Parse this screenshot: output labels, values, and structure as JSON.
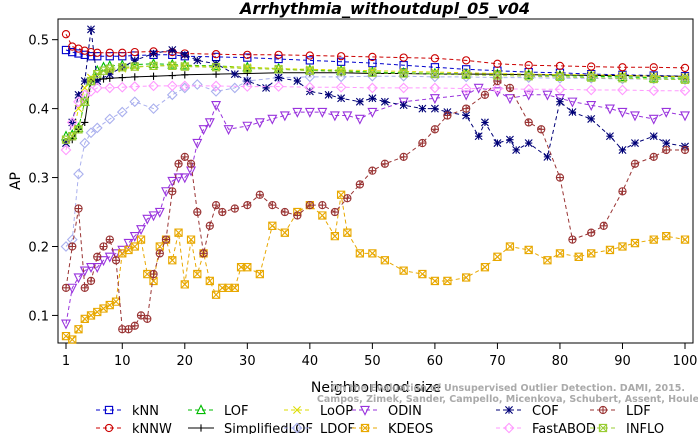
{
  "chart_data": {
    "type": "line",
    "title": "Arrhythmia_withoutdupl_05_v04",
    "xlabel": "Neighborhood size",
    "ylabel": "AP",
    "xlim": [
      1,
      100
    ],
    "ylim": [
      0.06,
      0.53
    ],
    "xticks": [
      1,
      10,
      20,
      30,
      40,
      50,
      60,
      70,
      80,
      90,
      100
    ],
    "yticks": [
      0.1,
      0.2,
      0.3,
      0.4,
      0.5
    ],
    "grid": false,
    "legend_position": "bottom",
    "watermark": [
      "Campos, Zimek, Sander, Campello, Micenkova, Schubert, Assent, Houle",
      "On the Evaluation of Unsupervised Outlier Detection. DAMI, 2015."
    ],
    "series": [
      {
        "name": "kNN",
        "color": "#0000cc",
        "marker": "square",
        "dash": "4,3",
        "x": [
          1,
          2,
          3,
          4,
          5,
          6,
          8,
          10,
          12,
          15,
          18,
          20,
          25,
          30,
          35,
          40,
          45,
          50,
          55,
          60,
          65,
          70,
          75,
          80,
          85,
          90,
          95,
          100
        ],
        "y": [
          0.485,
          0.482,
          0.48,
          0.478,
          0.476,
          0.476,
          0.476,
          0.476,
          0.477,
          0.478,
          0.478,
          0.476,
          0.475,
          0.474,
          0.472,
          0.47,
          0.468,
          0.466,
          0.463,
          0.46,
          0.457,
          0.455,
          0.453,
          0.452,
          0.45,
          0.449,
          0.448,
          0.447
        ]
      },
      {
        "name": "kNNW",
        "color": "#cc0000",
        "marker": "circle",
        "dash": "4,3",
        "x": [
          1,
          2,
          3,
          4,
          5,
          6,
          8,
          10,
          12,
          15,
          18,
          20,
          25,
          30,
          35,
          40,
          45,
          50,
          55,
          60,
          65,
          70,
          75,
          80,
          85,
          90,
          95,
          100
        ],
        "y": [
          0.508,
          0.49,
          0.487,
          0.484,
          0.482,
          0.481,
          0.481,
          0.481,
          0.482,
          0.483,
          0.482,
          0.48,
          0.479,
          0.478,
          0.478,
          0.477,
          0.476,
          0.475,
          0.474,
          0.473,
          0.47,
          0.465,
          0.463,
          0.462,
          0.461,
          0.46,
          0.46,
          0.459
        ]
      },
      {
        "name": "LOF",
        "color": "#00bb00",
        "marker": "triangle",
        "dash": "4,3",
        "x": [
          1,
          2,
          3,
          4,
          5,
          6,
          7,
          8,
          10,
          12,
          15,
          18,
          20,
          25,
          30,
          35,
          40,
          45,
          50,
          55,
          60,
          65,
          70,
          75,
          80,
          85,
          90,
          95,
          100
        ],
        "y": [
          0.36,
          0.362,
          0.372,
          0.41,
          0.44,
          0.455,
          0.46,
          0.462,
          0.463,
          0.464,
          0.465,
          0.464,
          0.463,
          0.462,
          0.46,
          0.458,
          0.456,
          0.455,
          0.453,
          0.452,
          0.451,
          0.45,
          0.45,
          0.449,
          0.448,
          0.447,
          0.446,
          0.445,
          0.444
        ]
      },
      {
        "name": "SimplifiedLOF",
        "color": "#000000",
        "marker": "plus",
        "dash": "none",
        "x": [
          1,
          2,
          3,
          4,
          5,
          6,
          7,
          8,
          10,
          12,
          15,
          18,
          20,
          25,
          30,
          35,
          40,
          45,
          50,
          55,
          60,
          65,
          70,
          75,
          80,
          85,
          90,
          95,
          100
        ],
        "y": [
          0.352,
          0.355,
          0.37,
          0.38,
          0.44,
          0.442,
          0.443,
          0.444,
          0.445,
          0.446,
          0.447,
          0.448,
          0.449,
          0.45,
          0.451,
          0.452,
          0.452,
          0.452,
          0.451,
          0.451,
          0.45,
          0.45,
          0.45,
          0.449,
          0.449,
          0.448,
          0.448,
          0.447,
          0.447
        ]
      },
      {
        "name": "LoOP",
        "color": "#dddd00",
        "marker": "x",
        "dash": "4,3",
        "x": [
          1,
          2,
          3,
          4,
          5,
          6,
          8,
          10,
          12,
          15,
          18,
          20,
          25,
          30,
          35,
          40,
          45,
          50,
          55,
          60,
          65,
          70,
          75,
          80,
          85,
          90,
          95,
          100
        ],
        "y": [
          0.355,
          0.36,
          0.4,
          0.43,
          0.445,
          0.45,
          0.455,
          0.458,
          0.46,
          0.462,
          0.463,
          0.462,
          0.461,
          0.46,
          0.458,
          0.457,
          0.456,
          0.455,
          0.454,
          0.453,
          0.452,
          0.451,
          0.45,
          0.449,
          0.449,
          0.448,
          0.447,
          0.446
        ]
      },
      {
        "name": "LDOF",
        "color": "#aab0ee",
        "marker": "diamond",
        "dash": "4,3",
        "x": [
          1,
          2,
          3,
          4,
          5,
          6,
          8,
          10,
          12,
          15,
          18,
          20,
          22,
          25,
          28,
          30,
          35,
          40,
          45,
          50,
          55,
          60,
          65,
          70,
          75,
          80,
          85,
          90,
          95,
          100
        ],
        "y": [
          0.2,
          0.21,
          0.305,
          0.35,
          0.365,
          0.372,
          0.385,
          0.395,
          0.41,
          0.4,
          0.42,
          0.43,
          0.435,
          0.425,
          0.43,
          0.44,
          0.445,
          0.446,
          0.446,
          0.447,
          0.447,
          0.446,
          0.446,
          0.445,
          0.445,
          0.444,
          0.444,
          0.443,
          0.443,
          0.442
        ]
      },
      {
        "name": "ODIN",
        "color": "#9933dd",
        "marker": "triangle-down",
        "dash": "4,3",
        "x": [
          1,
          2,
          3,
          4,
          5,
          6,
          7,
          8,
          9,
          10,
          11,
          12,
          13,
          14,
          15,
          16,
          17,
          18,
          19,
          20,
          21,
          22,
          23,
          24,
          25,
          27,
          30,
          32,
          34,
          36,
          38,
          40,
          42,
          44,
          46,
          48,
          50,
          55,
          60,
          65,
          67,
          70,
          72,
          75,
          78,
          80,
          82,
          85,
          88,
          90,
          92,
          95,
          97,
          100
        ],
        "y": [
          0.088,
          0.14,
          0.155,
          0.165,
          0.17,
          0.17,
          0.18,
          0.185,
          0.19,
          0.195,
          0.205,
          0.215,
          0.225,
          0.24,
          0.245,
          0.25,
          0.28,
          0.295,
          0.3,
          0.3,
          0.31,
          0.35,
          0.37,
          0.38,
          0.405,
          0.37,
          0.375,
          0.38,
          0.385,
          0.39,
          0.395,
          0.395,
          0.395,
          0.39,
          0.39,
          0.385,
          0.395,
          0.41,
          0.415,
          0.42,
          0.43,
          0.425,
          0.415,
          0.42,
          0.42,
          0.415,
          0.41,
          0.405,
          0.4,
          0.395,
          0.39,
          0.385,
          0.395,
          0.39
        ]
      },
      {
        "name": "KDEOS",
        "color": "#e8a800",
        "marker": "square-x",
        "dash": "4,3",
        "x": [
          1,
          2,
          3,
          4,
          5,
          6,
          7,
          8,
          9,
          10,
          11,
          12,
          13,
          14,
          15,
          16,
          17,
          18,
          19,
          20,
          21,
          22,
          23,
          24,
          25,
          26,
          27,
          28,
          29,
          30,
          32,
          34,
          36,
          38,
          40,
          42,
          44,
          45,
          46,
          48,
          50,
          52,
          55,
          58,
          60,
          62,
          65,
          68,
          70,
          72,
          75,
          78,
          80,
          83,
          85,
          88,
          90,
          92,
          95,
          97,
          100
        ],
        "y": [
          0.07,
          0.065,
          0.08,
          0.095,
          0.1,
          0.105,
          0.11,
          0.115,
          0.12,
          0.19,
          0.195,
          0.2,
          0.21,
          0.16,
          0.15,
          0.2,
          0.21,
          0.18,
          0.22,
          0.145,
          0.21,
          0.16,
          0.19,
          0.15,
          0.13,
          0.14,
          0.14,
          0.14,
          0.17,
          0.17,
          0.16,
          0.23,
          0.22,
          0.25,
          0.26,
          0.245,
          0.215,
          0.275,
          0.22,
          0.19,
          0.19,
          0.18,
          0.165,
          0.16,
          0.15,
          0.15,
          0.155,
          0.17,
          0.185,
          0.2,
          0.195,
          0.18,
          0.19,
          0.185,
          0.19,
          0.195,
          0.2,
          0.205,
          0.21,
          0.215,
          0.21
        ]
      },
      {
        "name": "COF",
        "color": "#000077",
        "marker": "asterisk",
        "dash": "4,3",
        "x": [
          1,
          2,
          3,
          4,
          5,
          6,
          8,
          10,
          12,
          15,
          18,
          20,
          22,
          25,
          28,
          30,
          33,
          35,
          38,
          40,
          43,
          45,
          48,
          50,
          52,
          55,
          58,
          60,
          62,
          65,
          67,
          68,
          70,
          72,
          73,
          75,
          78,
          80,
          82,
          85,
          88,
          90,
          92,
          95,
          97,
          100
        ],
        "y": [
          0.35,
          0.38,
          0.42,
          0.44,
          0.515,
          0.44,
          0.45,
          0.46,
          0.47,
          0.48,
          0.485,
          0.478,
          0.47,
          0.465,
          0.45,
          0.44,
          0.43,
          0.445,
          0.44,
          0.425,
          0.42,
          0.415,
          0.41,
          0.415,
          0.41,
          0.405,
          0.4,
          0.4,
          0.395,
          0.39,
          0.36,
          0.38,
          0.35,
          0.355,
          0.34,
          0.35,
          0.33,
          0.41,
          0.395,
          0.385,
          0.36,
          0.34,
          0.35,
          0.36,
          0.35,
          0.345
        ]
      },
      {
        "name": "FastABOD",
        "color": "#ff99ff",
        "marker": "diamond",
        "dash": "4,3",
        "x": [
          1,
          2,
          3,
          4,
          5,
          6,
          8,
          10,
          12,
          15,
          18,
          20,
          25,
          30,
          35,
          40,
          45,
          50,
          55,
          60,
          65,
          70,
          75,
          80,
          85,
          90,
          95,
          100
        ],
        "y": [
          0.34,
          0.38,
          0.41,
          0.42,
          0.425,
          0.43,
          0.43,
          0.431,
          0.432,
          0.433,
          0.433,
          0.433,
          0.433,
          0.432,
          0.432,
          0.431,
          0.431,
          0.43,
          0.43,
          0.43,
          0.429,
          0.429,
          0.428,
          0.428,
          0.427,
          0.427,
          0.426,
          0.426
        ]
      },
      {
        "name": "LDF",
        "color": "#993333",
        "marker": "circle-plus",
        "dash": "4,3",
        "x": [
          1,
          2,
          3,
          4,
          5,
          6,
          7,
          8,
          9,
          10,
          11,
          12,
          13,
          14,
          15,
          16,
          17,
          18,
          19,
          20,
          21,
          22,
          23,
          24,
          25,
          26,
          28,
          30,
          32,
          34,
          36,
          38,
          40,
          42,
          44,
          46,
          48,
          50,
          52,
          55,
          58,
          60,
          62,
          65,
          68,
          70,
          72,
          75,
          77,
          80,
          82,
          85,
          87,
          90,
          92,
          95,
          97,
          100
        ],
        "y": [
          0.14,
          0.2,
          0.255,
          0.14,
          0.15,
          0.185,
          0.2,
          0.21,
          0.18,
          0.08,
          0.08,
          0.085,
          0.1,
          0.095,
          0.16,
          0.19,
          0.21,
          0.28,
          0.32,
          0.33,
          0.32,
          0.25,
          0.19,
          0.23,
          0.26,
          0.25,
          0.255,
          0.26,
          0.275,
          0.26,
          0.25,
          0.245,
          0.26,
          0.26,
          0.25,
          0.27,
          0.29,
          0.31,
          0.32,
          0.33,
          0.35,
          0.37,
          0.39,
          0.4,
          0.42,
          0.44,
          0.43,
          0.38,
          0.37,
          0.3,
          0.21,
          0.22,
          0.23,
          0.28,
          0.32,
          0.33,
          0.34,
          0.34
        ]
      },
      {
        "name": "INFLO",
        "color": "#99cc33",
        "marker": "square-x",
        "dash": "4,3",
        "x": [
          1,
          2,
          3,
          4,
          5,
          6,
          7,
          8,
          10,
          12,
          15,
          18,
          20,
          25,
          30,
          35,
          40,
          45,
          50,
          55,
          60,
          65,
          70,
          75,
          80,
          85,
          90,
          95,
          100
        ],
        "y": [
          0.355,
          0.36,
          0.37,
          0.41,
          0.44,
          0.45,
          0.455,
          0.458,
          0.46,
          0.461,
          0.462,
          0.462,
          0.461,
          0.46,
          0.458,
          0.457,
          0.455,
          0.454,
          0.452,
          0.451,
          0.45,
          0.449,
          0.448,
          0.447,
          0.446,
          0.445,
          0.444,
          0.443,
          0.442
        ]
      }
    ]
  }
}
